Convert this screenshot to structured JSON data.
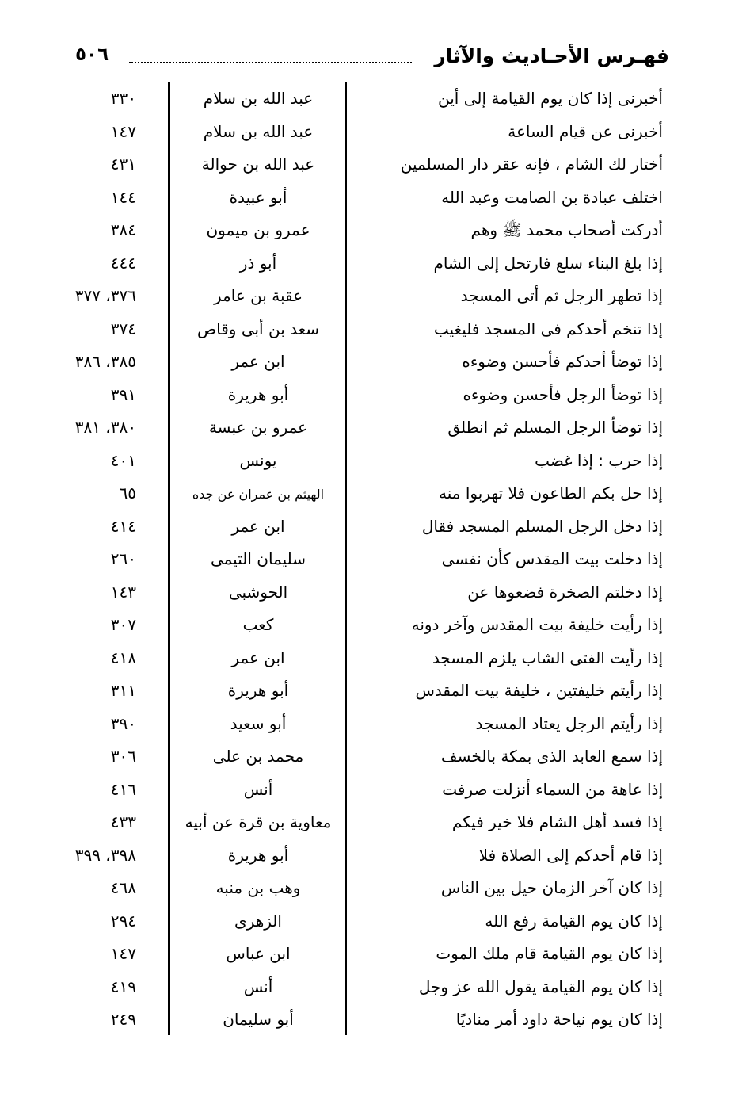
{
  "header": {
    "title": "فهـرس الأحـاديث والآثار",
    "page_number": "٥٠٦"
  },
  "rows": [
    {
      "text": "أخبرنى إذا كان يوم القيامة إلى أين",
      "narrator": "عبد الله بن سلام",
      "pages": "٣٣٠"
    },
    {
      "text": "أخبرنى عن قيام الساعة",
      "narrator": "عبد الله بن سلام",
      "pages": "١٤٧"
    },
    {
      "text": "أختار لك الشام ، فإنه عقر دار المسلمين",
      "narrator": "عبد الله بن حوالة",
      "pages": "٤٣١"
    },
    {
      "text": "اختلف عبادة بن الصامت وعبد الله",
      "narrator": "أبو عبيدة",
      "pages": "١٤٤"
    },
    {
      "text": "أدركت أصحاب محمد ﷺ وهم",
      "narrator": "عمرو بن ميمون",
      "pages": "٣٨٤"
    },
    {
      "text": "إذا بلغ البناء سلع فارتحل إلى الشام",
      "narrator": "أبو ذر",
      "pages": "٤٤٤"
    },
    {
      "text": "إذا تطهر الرجل ثم أتى المسجد",
      "narrator": "عقبة بن عامر",
      "pages": "٣٧٦، ٣٧٧"
    },
    {
      "text": "إذا تنخم أحدكم فى المسجد فليغيب",
      "narrator": "سعد بن أبى وقاص",
      "pages": "٣٧٤"
    },
    {
      "text": "إذا توضأ أحدكم فأحسن وضوءه",
      "narrator": "ابن عمر",
      "pages": "٣٨٥، ٣٨٦"
    },
    {
      "text": "إذا توضأ الرجل فأحسن وضوءه",
      "narrator": "أبو هريرة",
      "pages": "٣٩١"
    },
    {
      "text": "إذا توضأ الرجل المسلم ثم انطلق",
      "narrator": "عمرو بن عبسة",
      "pages": "٣٨٠، ٣٨١"
    },
    {
      "text": "إذا حرب : إذا غضب",
      "narrator": "يونس",
      "pages": "٤٠١"
    },
    {
      "text": "إذا حل بكم الطاعون فلا تهربوا منه",
      "narrator": "الهيثم بن عمران عن جده",
      "pages": "٦٥",
      "small": true
    },
    {
      "text": "إذا دخل الرجل المسلم المسجد فقال",
      "narrator": "ابن عمر",
      "pages": "٤١٤"
    },
    {
      "text": "إذا دخلت بيت المقدس كأن نفسى",
      "narrator": "سليمان التيمى",
      "pages": "٢٦٠"
    },
    {
      "text": "إذا دخلتم الصخرة فضعوها عن",
      "narrator": "الحوشبى",
      "pages": "١٤٣"
    },
    {
      "text": "إذا رأيت خليفة بيت المقدس وآخر دونه",
      "narrator": "كعب",
      "pages": "٣٠٧"
    },
    {
      "text": "إذا رأيت الفتى الشاب يلزم المسجد",
      "narrator": "ابن عمر",
      "pages": "٤١٨"
    },
    {
      "text": "إذا رأيتم خليفتين ، خليفة بيت المقدس",
      "narrator": "أبو هريرة",
      "pages": "٣١١"
    },
    {
      "text": "إذا رأيتم الرجل يعتاد المسجد",
      "narrator": "أبو سعيد",
      "pages": "٣٩٠"
    },
    {
      "text": "إذا سمع العابد الذى بمكة بالخسف",
      "narrator": "محمد بن على",
      "pages": "٣٠٦"
    },
    {
      "text": "إذا عاهة من السماء أنزلت صرفت",
      "narrator": "أنس",
      "pages": "٤١٦"
    },
    {
      "text": "إذا فسد أهل الشام فلا خير فيكم",
      "narrator": "معاوية بن قرة عن أبيه",
      "pages": "٤٣٣"
    },
    {
      "text": "إذا قام أحدكم إلى الصلاة فلا",
      "narrator": "أبو هريرة",
      "pages": "٣٩٨، ٣٩٩"
    },
    {
      "text": "إذا كان آخر الزمان حيل بين الناس",
      "narrator": "وهب بن منبه",
      "pages": "٤٦٨"
    },
    {
      "text": "إذا كان يوم القيامة رفع الله",
      "narrator": "الزهرى",
      "pages": "٢٩٤"
    },
    {
      "text": "إذا كان يوم القيامة قام ملك الموت",
      "narrator": "ابن عباس",
      "pages": "١٤٧"
    },
    {
      "text": "إذا كان يوم القيامة يقول الله عز وجل",
      "narrator": "أنس",
      "pages": "٤١٩"
    },
    {
      "text": "إذا كان يوم نياحة داود أمر مناديًا",
      "narrator": "أبو سليمان",
      "pages": "٢٤٩"
    }
  ]
}
